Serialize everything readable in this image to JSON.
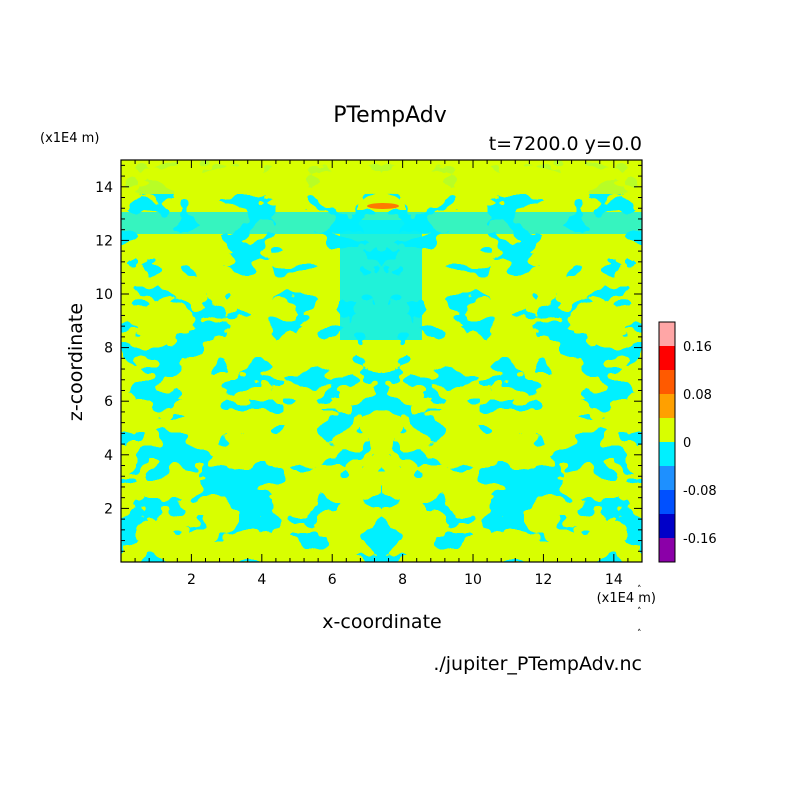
{
  "chart_data": {
    "type": "heatmap",
    "title": "PTempAdv",
    "subtitle": "t=7200.0 y=0.0",
    "xlabel": "x-coordinate",
    "ylabel": "z-coordinate",
    "x_unit": "(x1E4 m)",
    "y_unit": "(x1E4 m)",
    "source_file": "./jupiter_PTempAdv.nc",
    "xlim": [
      0.0,
      14.8
    ],
    "ylim": [
      0.0,
      15.0
    ],
    "x_ticks": [
      2,
      4,
      6,
      8,
      10,
      12,
      14
    ],
    "y_ticks": [
      2,
      4,
      6,
      8,
      10,
      12,
      14
    ],
    "colorbar": {
      "levels": [
        -0.2,
        -0.16,
        -0.12,
        -0.08,
        -0.04,
        0,
        0.04,
        0.08,
        0.12,
        0.16,
        0.2
      ],
      "labels": [
        "0.16",
        "0.08",
        "0",
        "-0.08",
        "-0.16"
      ],
      "colors": [
        "#8b00a8",
        "#0000c8",
        "#0050ff",
        "#1e90ff",
        "#00f0ff",
        "#d8ff00",
        "#ffa000",
        "#ff5a00",
        "#ff0000",
        "#ffa6a6"
      ]
    },
    "dominant_values": {
      "positive_band_color": "#d8ff00",
      "negative_band_color": "#00f0ff",
      "max_spot_color": "#ff7a00"
    }
  }
}
